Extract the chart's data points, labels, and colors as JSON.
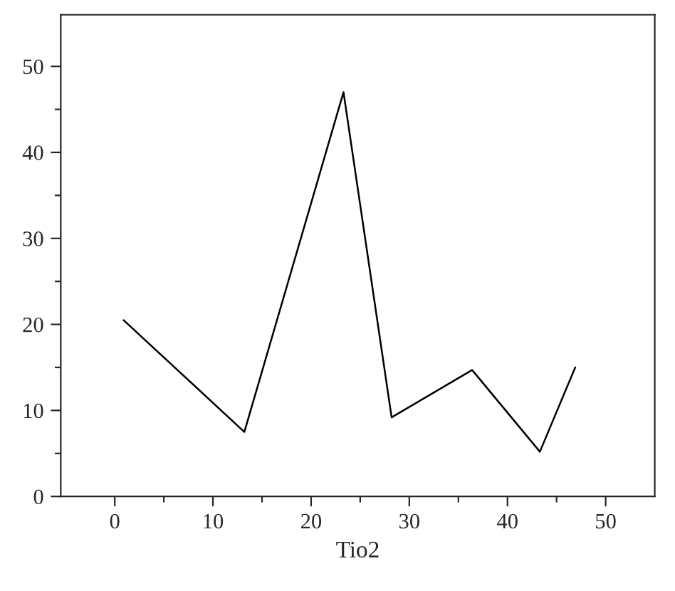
{
  "chart_data": {
    "type": "line",
    "xlabel": "Tio2",
    "x": [
      0.9,
      13.2,
      23.3,
      28.2,
      36.4,
      43.3,
      46.9
    ],
    "series": [
      {
        "color": "#000000",
        "values": [
          20.5,
          7.5,
          47,
          9.2,
          14.7,
          5.2,
          15
        ]
      }
    ],
    "xlim": [
      -5.5,
      55
    ],
    "ylim": [
      0,
      56
    ],
    "xticks": [
      0,
      10,
      20,
      30,
      40,
      50
    ],
    "yticks": [
      0,
      10,
      20,
      30,
      40,
      50
    ],
    "grid": false,
    "legend": false,
    "marker": "none",
    "line_style": "solid"
  }
}
